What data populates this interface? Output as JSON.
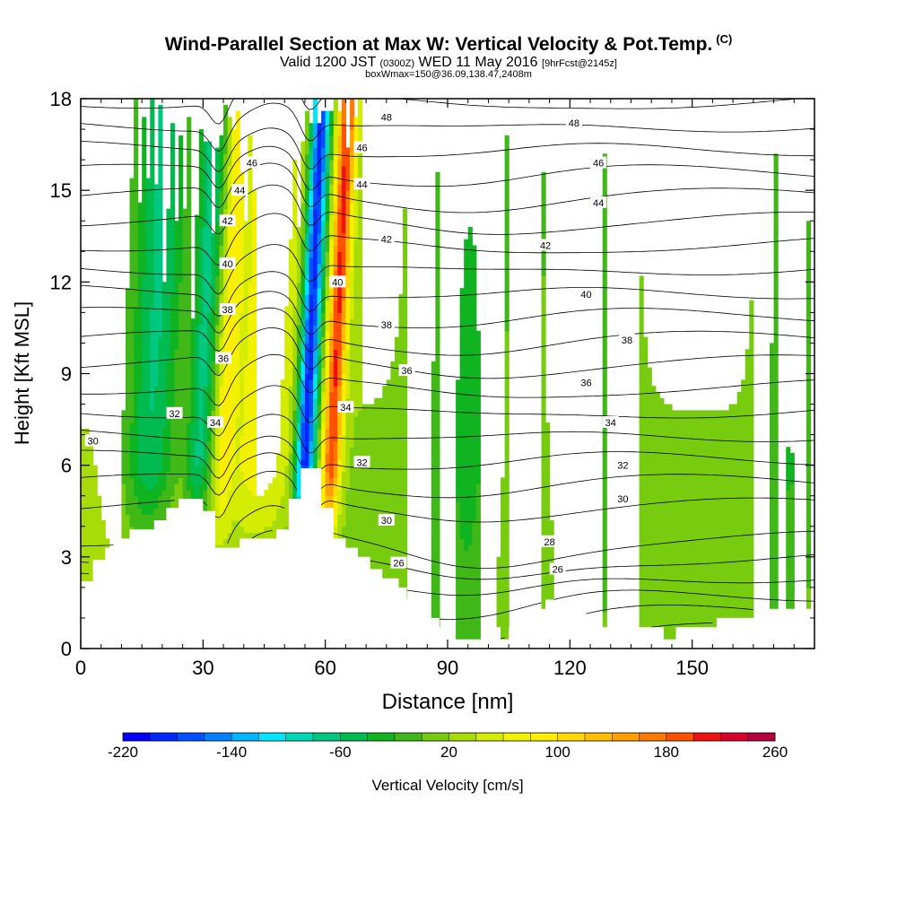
{
  "title": {
    "main": "Wind-Parallel Section at Max W: Vertical Velocity & Pot.Temp.",
    "main_tag": "(C)",
    "sub_a": "Valid 1200 JST",
    "sub_b": "(0300Z)",
    "sub_c": "WED 11 May 2016",
    "sub_d": "[9hrFcst@2145z]",
    "sub3": "boxWmax=150@36.09,138.47,2408m"
  },
  "chart_data": {
    "type": "heatmap",
    "xlabel": "Distance [nm]",
    "ylabel": "Height [Kft MSL]",
    "xlim": [
      0,
      180
    ],
    "ylim": [
      0,
      18
    ],
    "x_ticks": [
      0,
      30,
      60,
      90,
      120,
      150
    ],
    "y_ticks": [
      0,
      3,
      6,
      9,
      12,
      15,
      18
    ],
    "colorbar": {
      "label": "Vertical Velocity [cm/s]",
      "min": -220,
      "max": 260,
      "step": 20,
      "tick_labels": [
        -220,
        -140,
        -60,
        20,
        100,
        180,
        260
      ],
      "colors": [
        "#0000ff",
        "#0028ff",
        "#0050ff",
        "#0080ff",
        "#00b4ff",
        "#00e6ff",
        "#00d8b4",
        "#00c880",
        "#00bc50",
        "#10b420",
        "#40b818",
        "#78cc10",
        "#a8dc08",
        "#d4ec00",
        "#f2f200",
        "#ffee00",
        "#ffd800",
        "#ffbf00",
        "#ffa000",
        "#ff7800",
        "#ff5000",
        "#f01010",
        "#d80028",
        "#b4003c",
        "#8c006c",
        "#5a0096"
      ]
    },
    "isentrope_labels": [
      {
        "value": 48,
        "positions": [
          [
            75,
            17.4
          ],
          [
            121,
            17.2
          ]
        ]
      },
      {
        "value": 46,
        "positions": [
          [
            42,
            15.9
          ],
          [
            69,
            16.4
          ],
          [
            127,
            15.9
          ]
        ]
      },
      {
        "value": 44,
        "positions": [
          [
            39,
            15
          ],
          [
            69,
            15.2
          ],
          [
            127,
            14.6
          ]
        ]
      },
      {
        "value": 42,
        "positions": [
          [
            36,
            14
          ],
          [
            75,
            13.4
          ],
          [
            114,
            13.2
          ]
        ]
      },
      {
        "value": 40,
        "positions": [
          [
            36,
            12.6
          ],
          [
            63,
            12
          ],
          [
            124,
            11.6
          ]
        ]
      },
      {
        "value": 38,
        "positions": [
          [
            36,
            11.1
          ],
          [
            75,
            10.6
          ],
          [
            134,
            10.1
          ]
        ]
      },
      {
        "value": 36,
        "positions": [
          [
            35,
            9.5
          ],
          [
            80,
            9.1
          ],
          [
            124,
            8.7
          ]
        ]
      },
      {
        "value": 34,
        "positions": [
          [
            33,
            7.4
          ],
          [
            65,
            7.9
          ],
          [
            130,
            7.4
          ]
        ]
      },
      {
        "value": 32,
        "positions": [
          [
            23,
            7.7
          ],
          [
            69,
            6.1
          ],
          [
            133,
            6
          ]
        ]
      },
      {
        "value": 30,
        "positions": [
          [
            3,
            6.8
          ],
          [
            75,
            4.2
          ],
          [
            133,
            4.9
          ]
        ]
      },
      {
        "value": 28,
        "positions": [
          [
            115,
            3.5
          ]
        ]
      },
      {
        "value": 26,
        "positions": [
          [
            78,
            2.8
          ],
          [
            117,
            2.6
          ]
        ]
      }
    ],
    "terrain_profile": [
      [
        0,
        2.2
      ],
      [
        3,
        2.2
      ],
      [
        3,
        2.9
      ],
      [
        6,
        2.9
      ],
      [
        6,
        3.3
      ],
      [
        9,
        3.3
      ],
      [
        9,
        3.6
      ],
      [
        12,
        3.6
      ],
      [
        12,
        3.9
      ],
      [
        18,
        3.9
      ],
      [
        18,
        4.2
      ],
      [
        21,
        4.2
      ],
      [
        21,
        4.6
      ],
      [
        24,
        4.6
      ],
      [
        24,
        4.9
      ],
      [
        30,
        4.9
      ],
      [
        30,
        4.5
      ],
      [
        33,
        4.5
      ],
      [
        33,
        3.3
      ],
      [
        39,
        3.3
      ],
      [
        39,
        3.6
      ],
      [
        48,
        3.6
      ],
      [
        48,
        3.9
      ],
      [
        51,
        3.9
      ],
      [
        51,
        4.9
      ],
      [
        54,
        4.9
      ],
      [
        54,
        5.9
      ],
      [
        59,
        5.9
      ],
      [
        59,
        4.6
      ],
      [
        62,
        4.6
      ],
      [
        62,
        3.6
      ],
      [
        65,
        3.6
      ],
      [
        65,
        3.3
      ],
      [
        68,
        3.3
      ],
      [
        68,
        3
      ],
      [
        71,
        3
      ],
      [
        71,
        2.6
      ],
      [
        74,
        2.6
      ],
      [
        74,
        2.3
      ],
      [
        78,
        2.3
      ],
      [
        78,
        2
      ],
      [
        80,
        2
      ],
      [
        80,
        1.6
      ],
      [
        82,
        1.6
      ],
      [
        82,
        1.3
      ],
      [
        85,
        1.3
      ],
      [
        85,
        1
      ],
      [
        88,
        1
      ],
      [
        88,
        0.7
      ],
      [
        90,
        0.7
      ],
      [
        90,
        0.3
      ],
      [
        100,
        0.3
      ],
      [
        100,
        0.7
      ],
      [
        103,
        0.7
      ],
      [
        103,
        0.3
      ],
      [
        105,
        0.3
      ],
      [
        105,
        0.7
      ],
      [
        108,
        0.7
      ],
      [
        108,
        1
      ],
      [
        111,
        1
      ],
      [
        111,
        1.3
      ],
      [
        114,
        1.3
      ],
      [
        114,
        1.6
      ],
      [
        120,
        1.6
      ],
      [
        120,
        1.3
      ],
      [
        124,
        1.3
      ],
      [
        124,
        1
      ],
      [
        126,
        1
      ],
      [
        126,
        0.7
      ],
      [
        143,
        0.7
      ],
      [
        143,
        0.3
      ],
      [
        146,
        0.3
      ],
      [
        146,
        0.7
      ],
      [
        156,
        0.7
      ],
      [
        156,
        1
      ],
      [
        166,
        1
      ],
      [
        166,
        1.3
      ],
      [
        180,
        1.3
      ]
    ],
    "velocity_structure": {
      "background": 20,
      "features": [
        {
          "kind": "updraft",
          "x": 62.5,
          "peak": 200,
          "width": 2.2
        },
        {
          "kind": "downdraft",
          "x": 56,
          "peak": -200,
          "width": 2.4
        },
        {
          "kind": "updraft",
          "x": 45,
          "peak": 75,
          "width": 8
        },
        {
          "kind": "downdraft",
          "x": 30,
          "peak": -65,
          "width": 3
        },
        {
          "kind": "updraft",
          "x": 36,
          "peak": 75,
          "width": 2.2
        },
        {
          "kind": "downdraft",
          "x": 18,
          "peak": -60,
          "width": 6
        },
        {
          "kind": "downdraft",
          "x": 122,
          "peak": -25,
          "width": 9
        },
        {
          "kind": "downdraft",
          "x": 174,
          "peak": -25,
          "width": 6
        },
        {
          "kind": "downdraft",
          "x": 95,
          "peak": -30,
          "width": 10
        }
      ]
    }
  }
}
